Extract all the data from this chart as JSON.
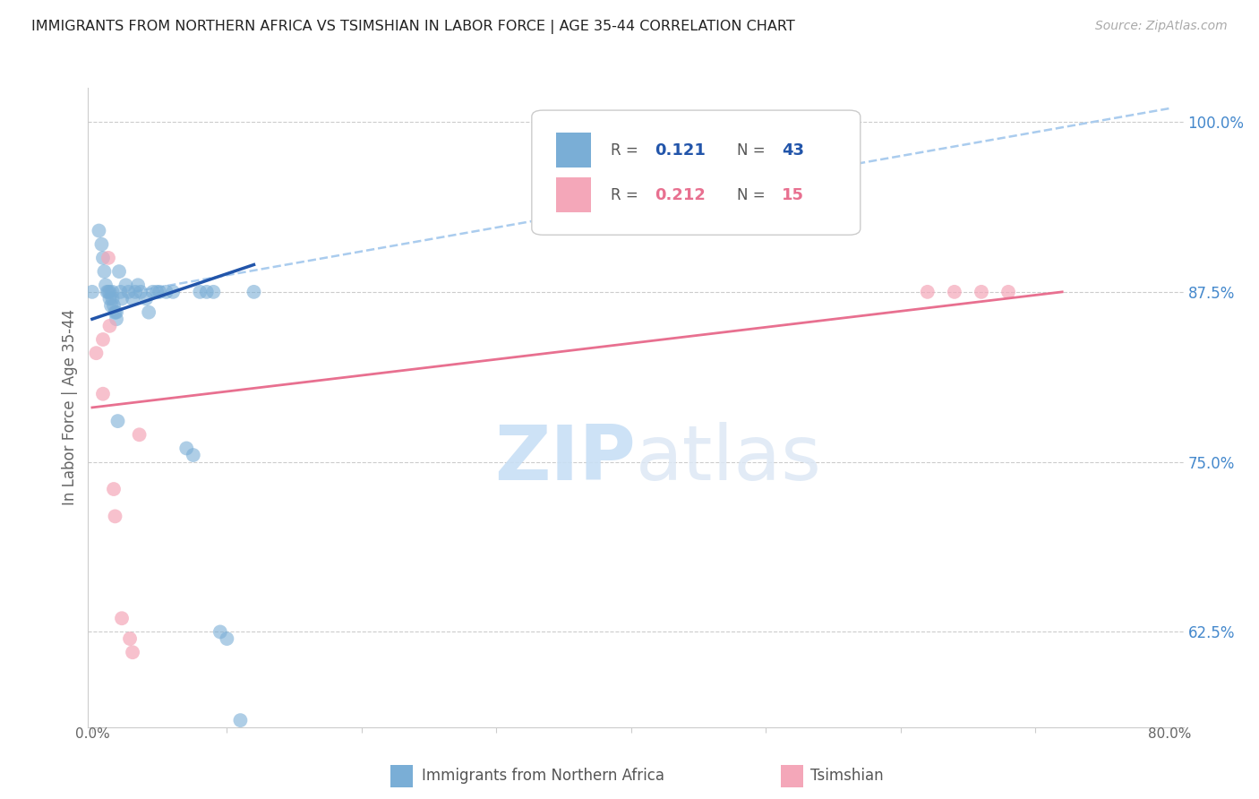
{
  "title": "IMMIGRANTS FROM NORTHERN AFRICA VS TSIMSHIAN IN LABOR FORCE | AGE 35-44 CORRELATION CHART",
  "source": "Source: ZipAtlas.com",
  "ylabel": "In Labor Force | Age 35-44",
  "right_yticks": [
    "100.0%",
    "87.5%",
    "75.0%",
    "62.5%"
  ],
  "right_ytick_vals": [
    1.0,
    0.875,
    0.75,
    0.625
  ],
  "ylim": [
    0.555,
    1.025
  ],
  "xlim": [
    -0.003,
    0.81
  ],
  "watermark_zip": "ZIP",
  "watermark_atlas": "atlas",
  "legend_blue_R": "0.121",
  "legend_blue_N": "43",
  "legend_pink_R": "0.212",
  "legend_pink_N": "15",
  "blue_color": "#7aaed6",
  "pink_color": "#f4a7b9",
  "blue_line_color": "#2255aa",
  "pink_line_color": "#e87090",
  "dashed_line_color": "#aaccee",
  "title_color": "#222222",
  "right_axis_color": "#4488cc",
  "blue_scatter_x": [
    0.0,
    0.005,
    0.007,
    0.008,
    0.009,
    0.01,
    0.011,
    0.012,
    0.013,
    0.013,
    0.014,
    0.015,
    0.015,
    0.016,
    0.017,
    0.018,
    0.018,
    0.019,
    0.02,
    0.021,
    0.022,
    0.025,
    0.027,
    0.03,
    0.032,
    0.034,
    0.036,
    0.04,
    0.042,
    0.045,
    0.048,
    0.05,
    0.055,
    0.06,
    0.07,
    0.075,
    0.08,
    0.085,
    0.09,
    0.095,
    0.1,
    0.11,
    0.12
  ],
  "blue_scatter_y": [
    0.875,
    0.92,
    0.91,
    0.9,
    0.89,
    0.88,
    0.875,
    0.875,
    0.875,
    0.87,
    0.865,
    0.875,
    0.87,
    0.865,
    0.86,
    0.86,
    0.855,
    0.78,
    0.89,
    0.875,
    0.87,
    0.88,
    0.875,
    0.87,
    0.875,
    0.88,
    0.875,
    0.87,
    0.86,
    0.875,
    0.875,
    0.875,
    0.875,
    0.875,
    0.76,
    0.755,
    0.875,
    0.875,
    0.875,
    0.625,
    0.62,
    0.56,
    0.875
  ],
  "pink_scatter_x": [
    0.003,
    0.008,
    0.008,
    0.012,
    0.013,
    0.016,
    0.017,
    0.022,
    0.028,
    0.03,
    0.035,
    0.62,
    0.64,
    0.66,
    0.68
  ],
  "pink_scatter_y": [
    0.83,
    0.84,
    0.8,
    0.9,
    0.85,
    0.73,
    0.71,
    0.635,
    0.62,
    0.61,
    0.77,
    0.875,
    0.875,
    0.875,
    0.875
  ],
  "blue_line_x": [
    0.0,
    0.12
  ],
  "blue_line_y": [
    0.855,
    0.895
  ],
  "pink_line_x": [
    0.0,
    0.72
  ],
  "pink_line_y": [
    0.79,
    0.875
  ],
  "dashed_line_x": [
    0.03,
    0.8
  ],
  "dashed_line_y": [
    0.875,
    1.01
  ]
}
